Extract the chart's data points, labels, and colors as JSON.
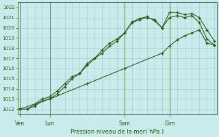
{
  "xlabel": "Pression niveau de la mer( hPa )",
  "ylim": [
    1011.5,
    1022.5
  ],
  "yticks": [
    1012,
    1013,
    1014,
    1015,
    1016,
    1017,
    1018,
    1019,
    1020,
    1021,
    1022
  ],
  "bg_color": "#c8ecec",
  "grid_color": "#a0c8c8",
  "line_color": "#2a5a18",
  "day_labels": [
    "Ven",
    "Lun",
    "Sam",
    "Dim"
  ],
  "day_positions": [
    0,
    4,
    14,
    20
  ],
  "xlim": [
    -0.3,
    26.3
  ],
  "line1_x": [
    0,
    1,
    2,
    3,
    4,
    5,
    6,
    7,
    8,
    9,
    10,
    11,
    12,
    13,
    14,
    15,
    16,
    17,
    18,
    19,
    20,
    21,
    22,
    23,
    24,
    25,
    26
  ],
  "line1_y": [
    1012.0,
    1012.0,
    1012.5,
    1013.0,
    1013.2,
    1013.8,
    1014.5,
    1015.2,
    1015.5,
    1016.5,
    1017.0,
    1017.8,
    1018.5,
    1018.9,
    1019.5,
    1020.5,
    1020.8,
    1021.0,
    1020.8,
    1020.0,
    1021.5,
    1021.5,
    1021.3,
    1021.4,
    1021.0,
    1019.8,
    1018.7
  ],
  "line2_x": [
    0,
    1,
    2,
    3,
    4,
    5,
    6,
    7,
    8,
    9,
    10,
    11,
    12,
    13,
    14,
    15,
    16,
    17,
    18,
    19,
    20,
    21,
    22,
    23,
    24,
    25,
    26
  ],
  "line2_y": [
    1012.0,
    1012.0,
    1012.3,
    1012.8,
    1013.0,
    1013.5,
    1014.2,
    1015.0,
    1015.5,
    1016.3,
    1017.0,
    1017.5,
    1018.2,
    1018.7,
    1019.5,
    1020.6,
    1020.9,
    1021.1,
    1020.7,
    1020.0,
    1021.0,
    1021.2,
    1021.0,
    1021.2,
    1020.5,
    1018.9,
    1018.3
  ],
  "line3_x": [
    0,
    4,
    9,
    14,
    19,
    20,
    21,
    22,
    23,
    24,
    25,
    26
  ],
  "line3_y": [
    1012.0,
    1013.0,
    1014.5,
    1016.0,
    1017.5,
    1018.2,
    1018.8,
    1019.2,
    1019.5,
    1019.8,
    1018.5,
    1018.3
  ]
}
